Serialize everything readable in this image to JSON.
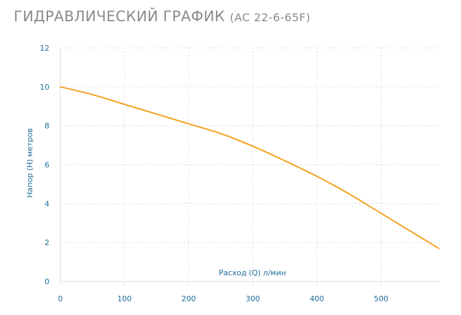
{
  "header": {
    "title": "ГИДРАВЛИЧЕСКИЙ ГРАФИК",
    "model": "(AC 22-6-65F)"
  },
  "colors": {
    "line": "#f5a11d",
    "grid": "#dcdcdc",
    "axis_text": "#1d6c97",
    "title": "#8a8a8a"
  },
  "chart_data": {
    "type": "line",
    "title": "ГИДРАВЛИЧЕСКИЙ ГРАФИК (AC 22-6-65F)",
    "xlabel": "Расход (Q) л/мин",
    "ylabel": "Напор (H) метров",
    "xlim": [
      0,
      590
    ],
    "ylim": [
      0,
      12
    ],
    "x_ticks": [
      0,
      100,
      200,
      300,
      400,
      500
    ],
    "y_ticks": [
      0,
      2,
      4,
      6,
      8,
      10,
      12
    ],
    "grid": true,
    "series": [
      {
        "x": [
          0,
          50,
          100,
          150,
          200,
          250,
          300,
          350,
          400,
          450,
          500,
          550,
          590
        ],
        "y": [
          10,
          9.6,
          9.1,
          8.6,
          8.1,
          7.6,
          6.95,
          6.2,
          5.4,
          4.5,
          3.5,
          2.5,
          1.7
        ]
      }
    ]
  }
}
